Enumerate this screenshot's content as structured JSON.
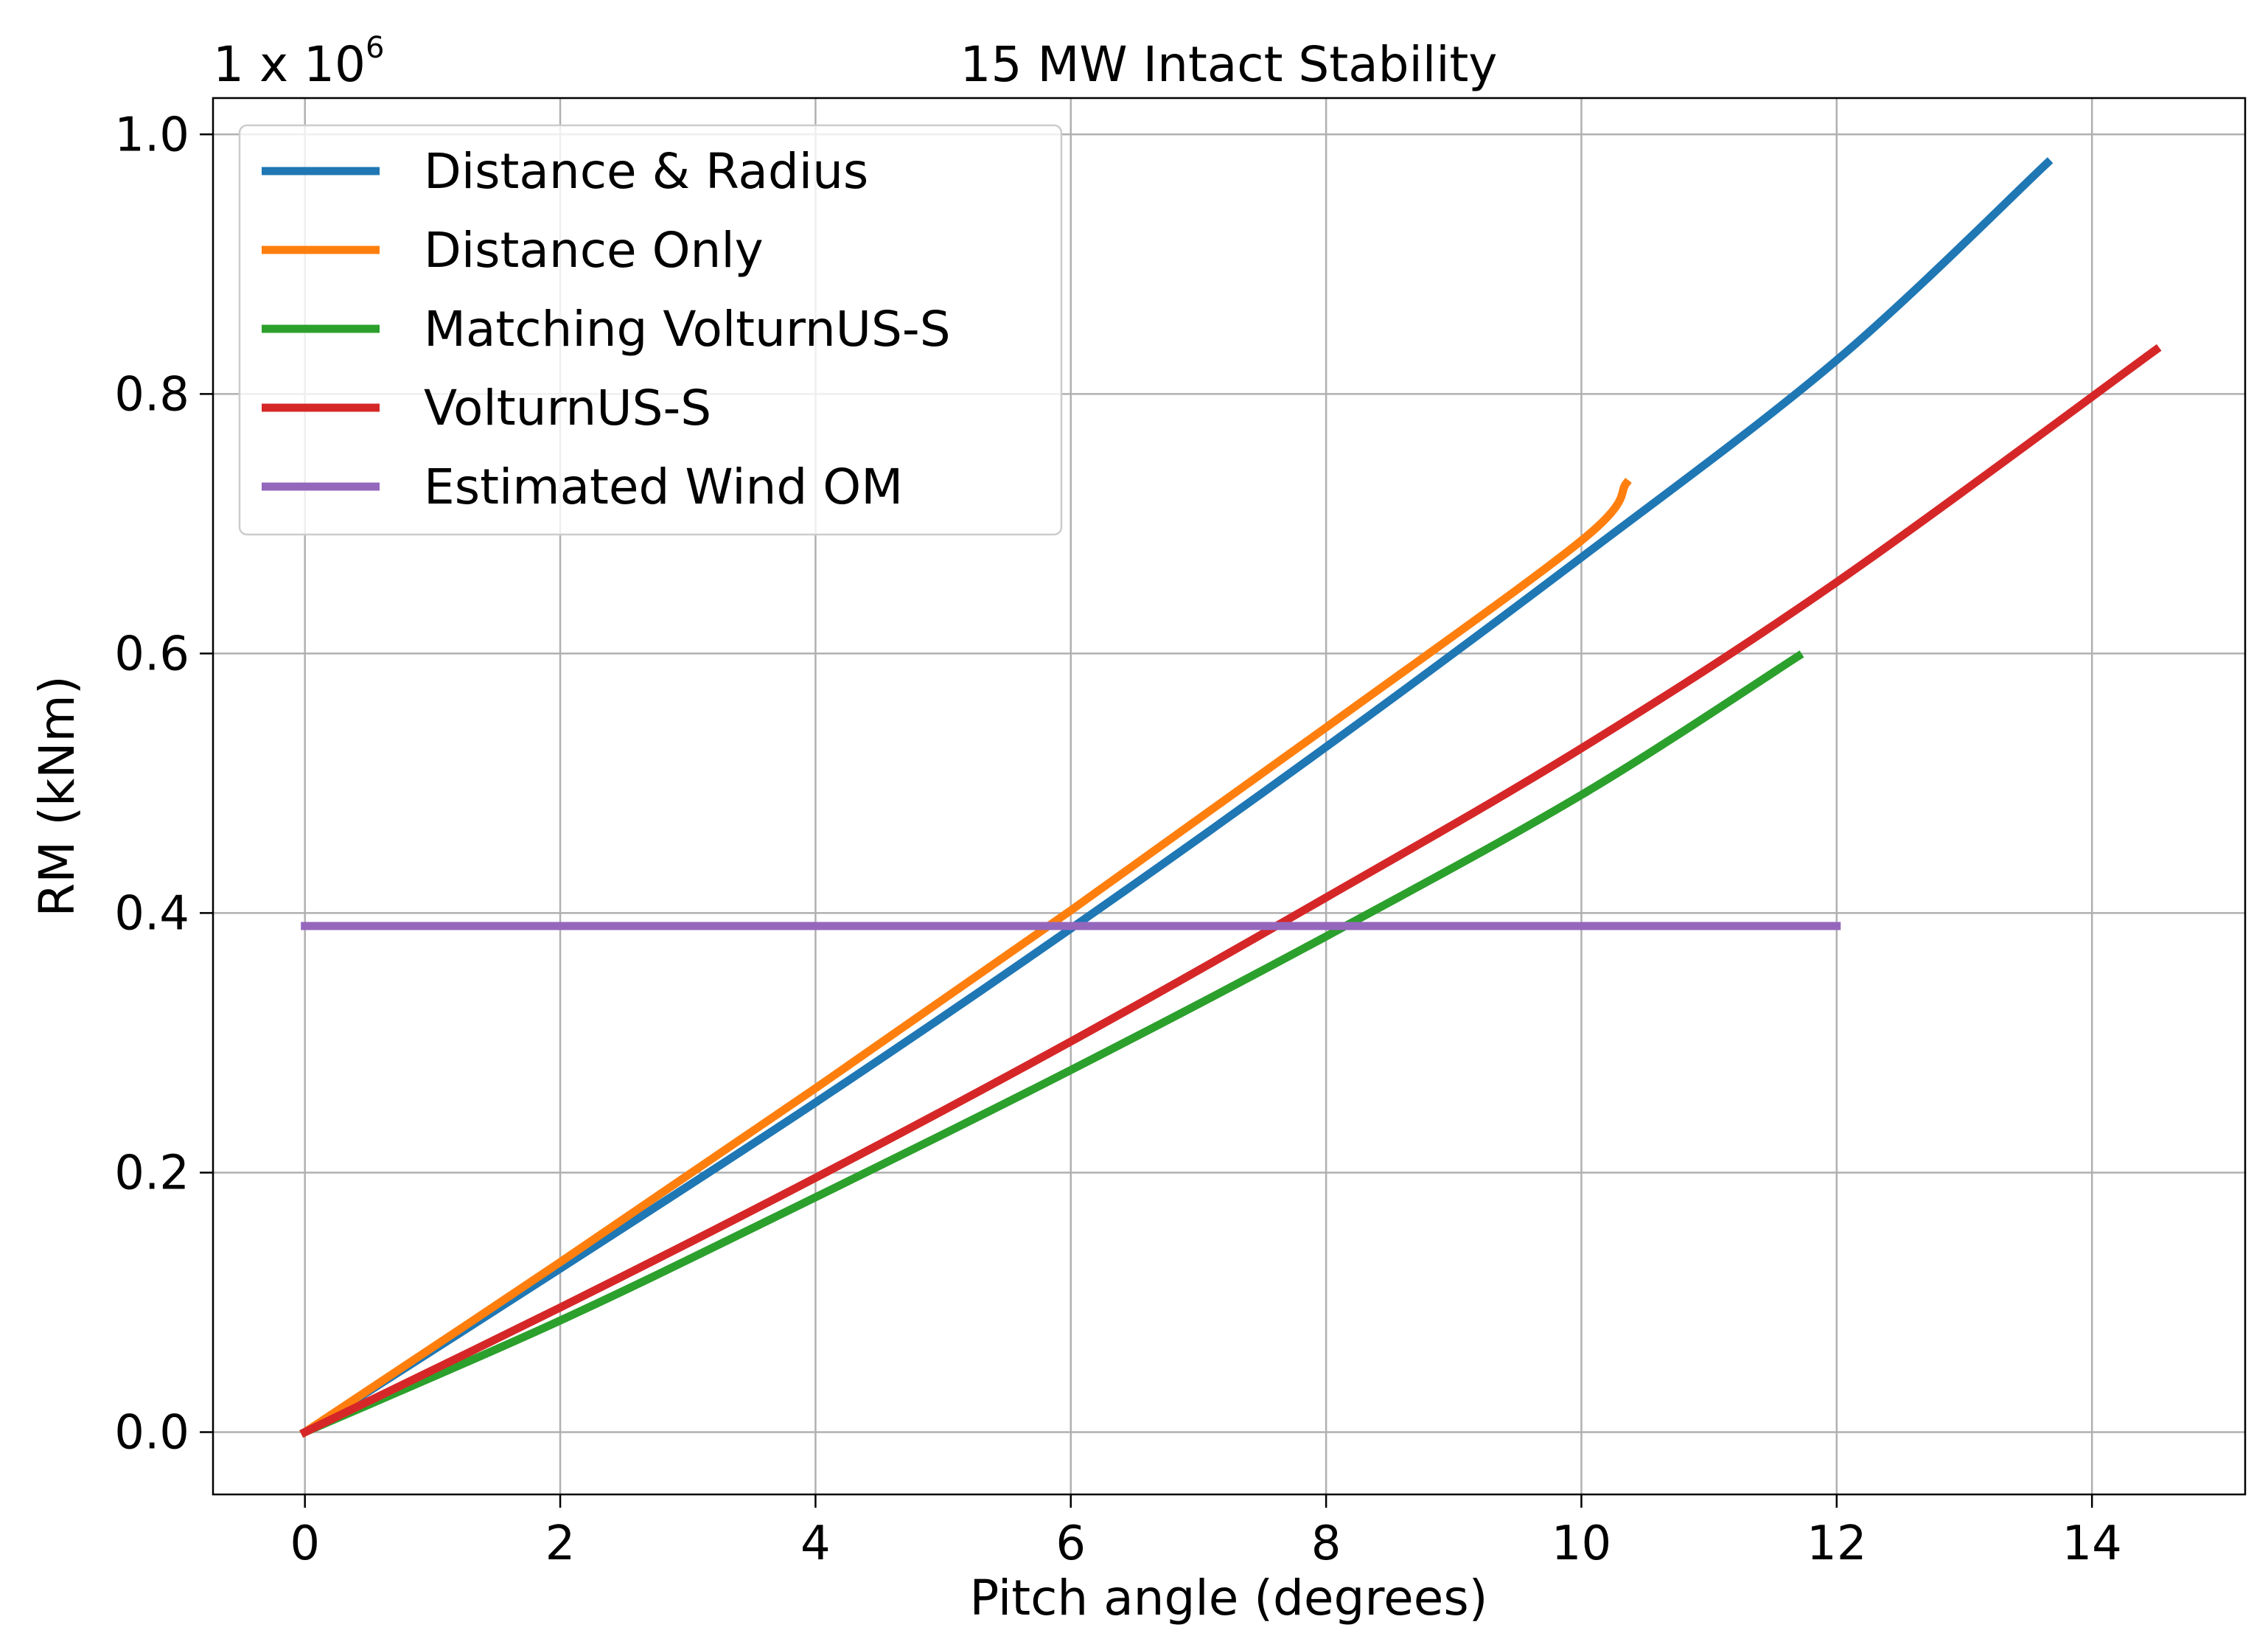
{
  "chart_data": {
    "type": "line",
    "title": "15 MW Intact Stability",
    "xlabel": "Pitch angle (degrees)",
    "ylabel": "RM (kNm)",
    "y_scale_prefix": "1 x 10",
    "y_scale_exponent": "6",
    "xlim": [
      -0.72,
      15.2
    ],
    "ylim": [
      -0.048,
      1.028
    ],
    "xticks": [
      0,
      2,
      4,
      6,
      8,
      10,
      12,
      14
    ],
    "xtick_labels": [
      "0",
      "2",
      "4",
      "6",
      "8",
      "10",
      "12",
      "14"
    ],
    "yticks": [
      0.0,
      0.2,
      0.4,
      0.6,
      0.8,
      1.0
    ],
    "ytick_labels": [
      "0.0",
      "0.2",
      "0.4",
      "0.6",
      "0.8",
      "1.0"
    ],
    "grid": true,
    "legend_position": "top-left",
    "series": [
      {
        "name": "Distance & Radius",
        "color": "#1f77b4",
        "x": [
          0,
          2,
          4,
          6,
          8,
          10,
          12,
          13.65
        ],
        "y": [
          0,
          0.126,
          0.254,
          0.388,
          0.528,
          0.674,
          0.826,
          0.978
        ]
      },
      {
        "name": "Distance Only",
        "color": "#ff7f0e",
        "x": [
          0,
          2,
          4,
          6,
          8,
          10,
          10.35
        ],
        "y": [
          0,
          0.131,
          0.265,
          0.402,
          0.543,
          0.687,
          0.731
        ]
      },
      {
        "name": "Matching VolturnUS-S",
        "color": "#2ca02c",
        "x": [
          0,
          2,
          4,
          6,
          8,
          10,
          11.7
        ],
        "y": [
          0,
          0.086,
          0.181,
          0.279,
          0.382,
          0.491,
          0.598
        ]
      },
      {
        "name": "VolturnUS-S",
        "color": "#d62728",
        "x": [
          0,
          2,
          4,
          6,
          8,
          10,
          12,
          14.5
        ],
        "y": [
          0,
          0.096,
          0.196,
          0.301,
          0.412,
          0.527,
          0.655,
          0.834
        ]
      },
      {
        "name": "Estimated Wind OM",
        "color": "#9467bd",
        "x": [
          0,
          12
        ],
        "y": [
          0.39,
          0.39
        ]
      }
    ]
  }
}
